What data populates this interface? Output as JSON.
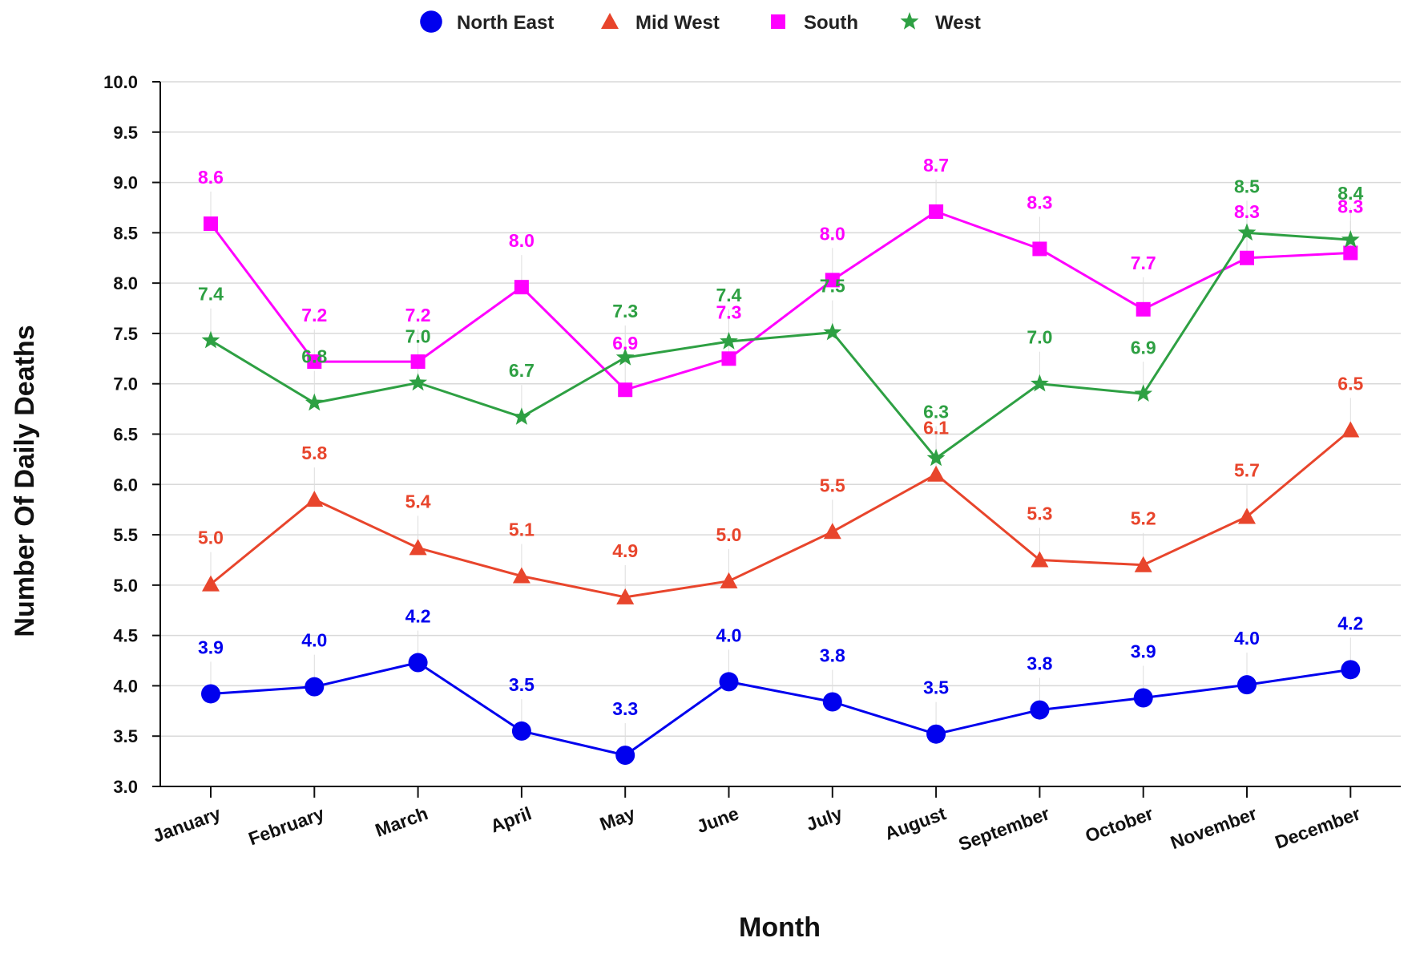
{
  "chart_data": {
    "type": "line",
    "title": "",
    "xlabel": "Month",
    "ylabel": "Number Of Daily Deaths",
    "categories": [
      "January",
      "February",
      "March",
      "April",
      "May",
      "June",
      "July",
      "August",
      "September",
      "October",
      "November",
      "December"
    ],
    "ylim": [
      3.0,
      10.0
    ],
    "yticks": [
      "3.0",
      "3.5",
      "4.0",
      "4.5",
      "5.0",
      "5.5",
      "6.0",
      "6.5",
      "7.0",
      "7.5",
      "8.0",
      "8.5",
      "9.0",
      "9.5",
      "10.0"
    ],
    "grid": "horizontal",
    "legend_position": "top-center",
    "series": [
      {
        "name": "North East",
        "marker": "circle",
        "color": "#0000ee",
        "values": [
          3.92,
          3.99,
          4.23,
          3.55,
          3.31,
          4.04,
          3.84,
          3.52,
          3.76,
          3.88,
          4.01,
          4.16
        ],
        "labels": [
          "3.9",
          "4.0",
          "4.2",
          "3.5",
          "3.3",
          "4.0",
          "3.8",
          "3.5",
          "3.8",
          "3.9",
          "4.0",
          "4.2"
        ]
      },
      {
        "name": "Mid West",
        "marker": "triangle",
        "color": "#e8452c",
        "values": [
          5.01,
          5.85,
          5.37,
          5.09,
          4.88,
          5.04,
          5.53,
          6.1,
          5.25,
          5.2,
          5.68,
          6.54
        ],
        "labels": [
          "5.0",
          "5.8",
          "5.4",
          "5.1",
          "4.9",
          "5.0",
          "5.5",
          "6.1",
          "5.3",
          "5.2",
          "5.7",
          "6.5"
        ]
      },
      {
        "name": "South",
        "marker": "square",
        "color": "#ff00ff",
        "values": [
          8.59,
          7.22,
          7.22,
          7.96,
          6.94,
          7.25,
          8.03,
          8.71,
          8.34,
          7.74,
          8.25,
          8.3
        ],
        "labels": [
          "8.6",
          "7.2",
          "7.2",
          "8.0",
          "6.9",
          "7.3",
          "8.0",
          "8.7",
          "8.3",
          "7.7",
          "8.3",
          "8.3"
        ]
      },
      {
        "name": "West",
        "marker": "star",
        "color": "#2ea043",
        "values": [
          7.43,
          6.81,
          7.01,
          6.67,
          7.26,
          7.42,
          7.51,
          6.26,
          7.0,
          6.9,
          8.5,
          8.43
        ],
        "labels": [
          "7.4",
          "6.8",
          "7.0",
          "6.7",
          "7.3",
          "7.4",
          "7.5",
          "6.3",
          "7.0",
          "6.9",
          "8.5",
          "8.4"
        ]
      }
    ]
  }
}
